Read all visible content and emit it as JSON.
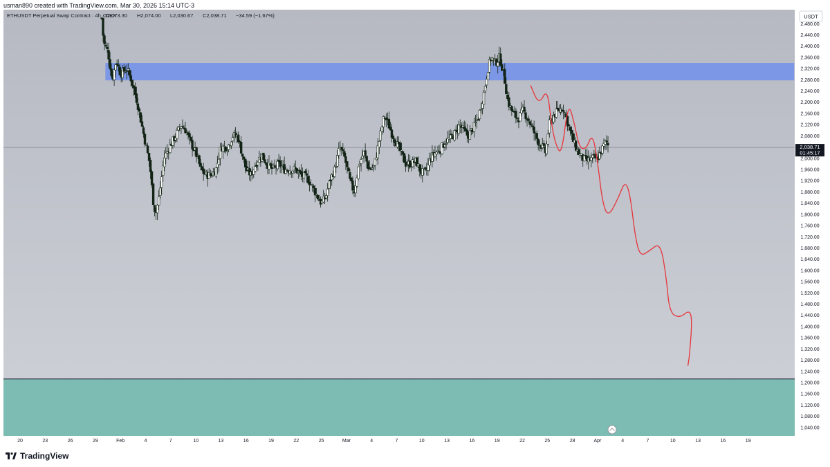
{
  "header": {
    "created_by": "usman890 created with TradingView.com, Mar 30, 2026 15:14 UTC-3"
  },
  "symbol_info": {
    "name": "ETHUSDT Perpetual Swap Contract · 4h · OKX",
    "open": "O2,073.30",
    "high": "H2,074.00",
    "low": "L2,030.67",
    "close": "C2,038.71",
    "change": "−34.59 (−1.67%)"
  },
  "currency_button": "USDT",
  "last_price_label": "2,038.71",
  "countdown_label": "01:45:17",
  "brand": "TradingView",
  "colors": {
    "background_top": "#b6b9c2",
    "background_bottom": "#cfd2d8",
    "candle_up": "#ffffff",
    "candle_down": "#132417",
    "resistance_zone": "#7b97e6",
    "support_zone": "#7dbcb3",
    "projection_path": "#e8343a"
  },
  "chart_data": {
    "type": "candlestick",
    "timeframe": "4h",
    "y_axis": {
      "ylim": [
        1010,
        2530
      ],
      "ticks": [
        1040,
        1080,
        1120,
        1160,
        1200,
        1240,
        1280,
        1320,
        1360,
        1400,
        1440,
        1480,
        1520,
        1560,
        1600,
        1640,
        1680,
        1720,
        1760,
        1800,
        1840,
        1880,
        1920,
        1960,
        2000,
        2040,
        2080,
        2120,
        2160,
        2200,
        2240,
        2280,
        2320,
        2360,
        2400,
        2440,
        2480
      ],
      "tick_labels": [
        "1,040.00",
        "1,080.00",
        "1,120.00",
        "1,160.00",
        "1,200.00",
        "1,240.00",
        "1,280.00",
        "1,320.00",
        "1,360.00",
        "1,400.00",
        "1,440.00",
        "1,480.00",
        "1,520.00",
        "1,560.00",
        "1,600.00",
        "1,640.00",
        "1,680.00",
        "1,720.00",
        "1,760.00",
        "1,800.00",
        "1,840.00",
        "1,880.00",
        "1,920.00",
        "1,960.00",
        "2,000.00",
        "2,040.00",
        "2,080.00",
        "2,120.00",
        "2,160.00",
        "2,200.00",
        "2,240.00",
        "2,280.00",
        "2,320.00",
        "2,360.00",
        "2,400.00",
        "2,440.00",
        "2,480.00"
      ]
    },
    "x_axis": {
      "start_day": 17,
      "end_day": 90,
      "tick_days": [
        20,
        23,
        26,
        29,
        32,
        35,
        38,
        41,
        44,
        47,
        50,
        53,
        56,
        60,
        63,
        66,
        69,
        72,
        75,
        78,
        81,
        84,
        87
      ],
      "tick_labels": [
        "20",
        "23",
        "26",
        "29",
        "Feb",
        "4",
        "7",
        "10",
        "13",
        "16",
        "19",
        "22",
        "25",
        "Mar",
        "4",
        "7",
        "10",
        "13",
        "16",
        "19",
        "22",
        "25",
        "28"
      ]
    },
    "x_axis_future": {
      "tick_labels": [
        "Apr",
        "4",
        "7",
        "10",
        "13",
        "16",
        "19"
      ]
    },
    "price_anchors": [
      [
        29.75,
        2500
      ],
      [
        30.0,
        2410
      ],
      [
        30.5,
        2380
      ],
      [
        31.0,
        2280
      ],
      [
        31.5,
        2350
      ],
      [
        32.0,
        2300
      ],
      [
        32.7,
        2320
      ],
      [
        33.3,
        2280
      ],
      [
        34.0,
        2200
      ],
      [
        34.8,
        2080
      ],
      [
        35.5,
        1980
      ],
      [
        35.9,
        1850
      ],
      [
        36.2,
        1800
      ],
      [
        36.6,
        1860
      ],
      [
        37.2,
        2000
      ],
      [
        37.8,
        2040
      ],
      [
        38.6,
        2080
      ],
      [
        39.2,
        2120
      ],
      [
        39.8,
        2100
      ],
      [
        40.3,
        2060
      ],
      [
        41.0,
        2020
      ],
      [
        41.6,
        1960
      ],
      [
        42.2,
        1940
      ],
      [
        42.8,
        1940
      ],
      [
        43.4,
        1960
      ],
      [
        44.0,
        2040
      ],
      [
        44.8,
        2040
      ],
      [
        45.4,
        2080
      ],
      [
        46.0,
        2080
      ],
      [
        46.5,
        2020
      ],
      [
        47.0,
        1960
      ],
      [
        47.6,
        1940
      ],
      [
        48.3,
        1990
      ],
      [
        48.9,
        2010
      ],
      [
        49.5,
        1980
      ],
      [
        50.2,
        1960
      ],
      [
        50.9,
        1980
      ],
      [
        51.6,
        1960
      ],
      [
        52.2,
        1960
      ],
      [
        52.9,
        1960
      ],
      [
        53.6,
        1940
      ],
      [
        54.3,
        1930
      ],
      [
        54.9,
        1900
      ],
      [
        55.6,
        1860
      ],
      [
        56.0,
        1840
      ],
      [
        56.5,
        1860
      ],
      [
        57.0,
        1920
      ],
      [
        57.6,
        1960
      ],
      [
        58.2,
        2040
      ],
      [
        58.8,
        2000
      ],
      [
        59.4,
        1920
      ],
      [
        59.9,
        1880
      ],
      [
        60.5,
        1980
      ],
      [
        61.1,
        2020
      ],
      [
        61.7,
        1960
      ],
      [
        62.3,
        1970
      ],
      [
        62.9,
        2060
      ],
      [
        63.5,
        2150
      ],
      [
        63.9,
        2130
      ],
      [
        64.4,
        2090
      ],
      [
        64.9,
        2060
      ],
      [
        65.5,
        2020
      ],
      [
        66.1,
        1980
      ],
      [
        66.7,
        1980
      ],
      [
        67.3,
        1990
      ],
      [
        67.9,
        1950
      ],
      [
        68.5,
        1950
      ],
      [
        69.0,
        2000
      ],
      [
        69.6,
        2020
      ],
      [
        70.2,
        2030
      ],
      [
        70.8,
        2060
      ],
      [
        71.4,
        2070
      ],
      [
        72.0,
        2090
      ],
      [
        72.5,
        2120
      ],
      [
        73.0,
        2100
      ],
      [
        73.5,
        2080
      ],
      [
        74.2,
        2110
      ],
      [
        74.8,
        2150
      ],
      [
        75.4,
        2230
      ],
      [
        75.9,
        2320
      ],
      [
        76.3,
        2360
      ],
      [
        76.8,
        2340
      ],
      [
        77.3,
        2360
      ],
      [
        77.8,
        2300
      ],
      [
        78.3,
        2200
      ],
      [
        78.9,
        2160
      ],
      [
        79.5,
        2140
      ],
      [
        80.1,
        2170
      ],
      [
        80.7,
        2140
      ],
      [
        81.3,
        2100
      ],
      [
        81.9,
        2060
      ],
      [
        82.4,
        2040
      ],
      [
        82.8,
        2020
      ],
      [
        83.2,
        2120
      ],
      [
        83.7,
        2150
      ],
      [
        84.3,
        2170
      ],
      [
        84.9,
        2180
      ],
      [
        85.5,
        2120
      ],
      [
        86.1,
        2060
      ],
      [
        86.7,
        2020
      ],
      [
        87.2,
        2000
      ],
      [
        87.8,
        1990
      ],
      [
        88.4,
        2000
      ],
      [
        89.0,
        2000
      ],
      [
        89.5,
        2030
      ],
      [
        90.0,
        2060
      ],
      [
        90.4,
        2040
      ]
    ],
    "zones": [
      {
        "type": "resistance",
        "from_day": 30.2,
        "to_day": 112.5,
        "low": 2278,
        "high": 2340,
        "color": "#7b97e6"
      },
      {
        "type": "support",
        "from_day": 17,
        "to_day": 119,
        "low": 1010,
        "high": 1213,
        "color": "#7dbcb3"
      }
    ],
    "horizontal_lines": [
      {
        "price": 2038.71,
        "color": "#7f8590"
      },
      {
        "price": 1213,
        "color": "#3d4452"
      }
    ],
    "projection_path": [
      [
        81.0,
        2260
      ],
      [
        82.0,
        2190
      ],
      [
        83.0,
        2250
      ],
      [
        83.5,
        2120
      ],
      [
        84.0,
        2050
      ],
      [
        84.7,
        2010
      ],
      [
        85.5,
        2200
      ],
      [
        86.2,
        2130
      ],
      [
        86.8,
        2040
      ],
      [
        87.6,
        2030
      ],
      [
        88.4,
        2090
      ],
      [
        89.0,
        1990
      ],
      [
        89.6,
        1840
      ],
      [
        90.3,
        1790
      ],
      [
        91.5,
        1860
      ],
      [
        92.3,
        1920
      ],
      [
        92.9,
        1870
      ],
      [
        93.5,
        1720
      ],
      [
        94.1,
        1650
      ],
      [
        95.2,
        1670
      ],
      [
        96.5,
        1700
      ],
      [
        97.2,
        1580
      ],
      [
        97.6,
        1450
      ],
      [
        98.8,
        1430
      ],
      [
        100.0,
        1460
      ],
      [
        100.3,
        1420
      ],
      [
        100.0,
        1300
      ],
      [
        99.8,
        1260
      ]
    ]
  }
}
